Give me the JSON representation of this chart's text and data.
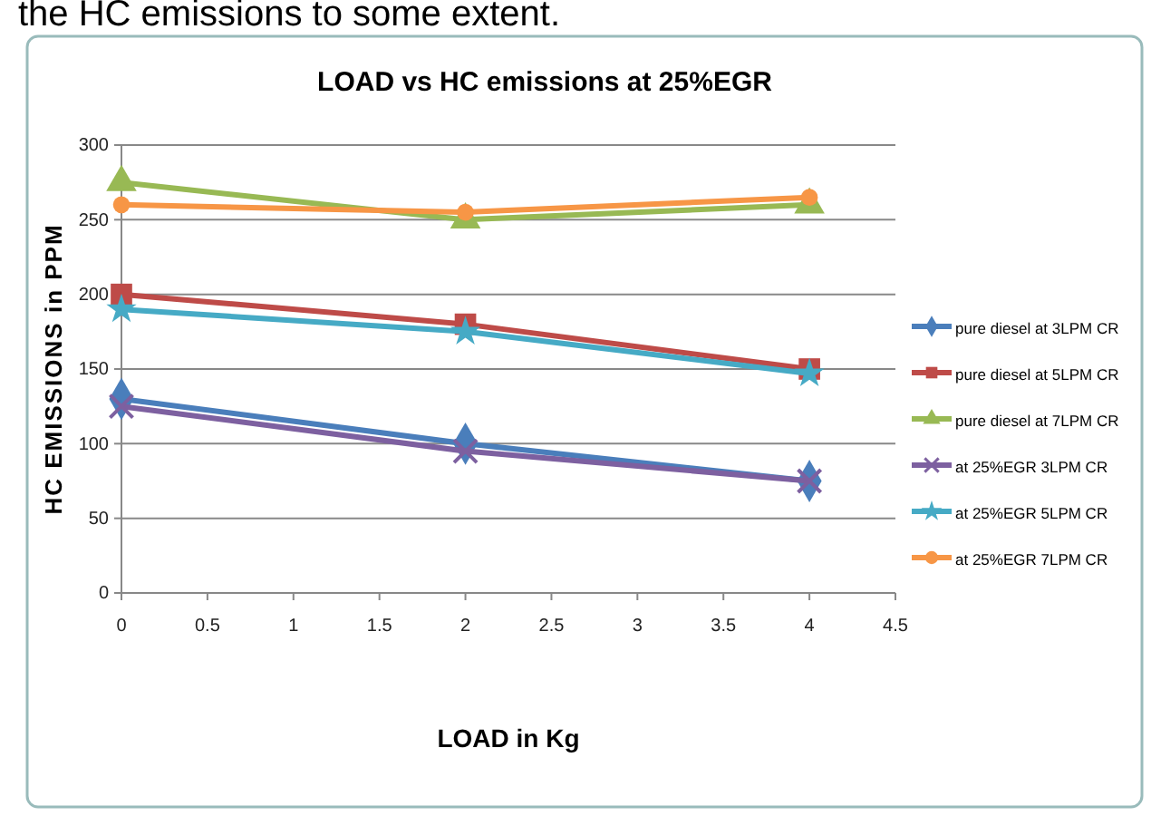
{
  "chart_data": {
    "type": "line",
    "title": "LOAD vs HC emissions at 25%EGR",
    "xlabel": "LOAD in Kg",
    "ylabel": "HC EMISSIONS in PPM",
    "annotations": [
      "the HC emissions to some extent."
    ],
    "x": [
      0,
      2,
      4
    ],
    "series": [
      {
        "name": "pure diesel at 3LPM CR",
        "color": "#4a7ebb",
        "marker": "diamond",
        "values": [
          130,
          100,
          75
        ]
      },
      {
        "name": "pure diesel  at 5LPM CR",
        "color": "#be4b48",
        "marker": "square",
        "values": [
          200,
          180,
          150
        ]
      },
      {
        "name": "pure diesel at 7LPM CR",
        "color": "#98b954",
        "marker": "triangle",
        "values": [
          275,
          250,
          260
        ]
      },
      {
        "name": "at 25%EGR 3LPM CR",
        "color": "#7d60a0",
        "marker": "cross",
        "values": [
          125,
          95,
          75
        ]
      },
      {
        "name": "at 25%EGR 5LPM CR",
        "color": "#46aac5",
        "marker": "star",
        "values": [
          190,
          175,
          147
        ]
      },
      {
        "name": "at 25%EGR 7LPM CR",
        "color": "#f79646",
        "marker": "circle",
        "values": [
          260,
          255,
          265
        ]
      }
    ],
    "xlim": [
      0,
      4.5
    ],
    "xticks": [
      0,
      0.5,
      1,
      1.5,
      2,
      2.5,
      3,
      3.5,
      4,
      4.5
    ],
    "ylim": [
      0,
      300
    ],
    "yticks": [
      0,
      50,
      100,
      150,
      200,
      250,
      300
    ],
    "grid": "y",
    "legend": "right",
    "line_style": "solid"
  }
}
